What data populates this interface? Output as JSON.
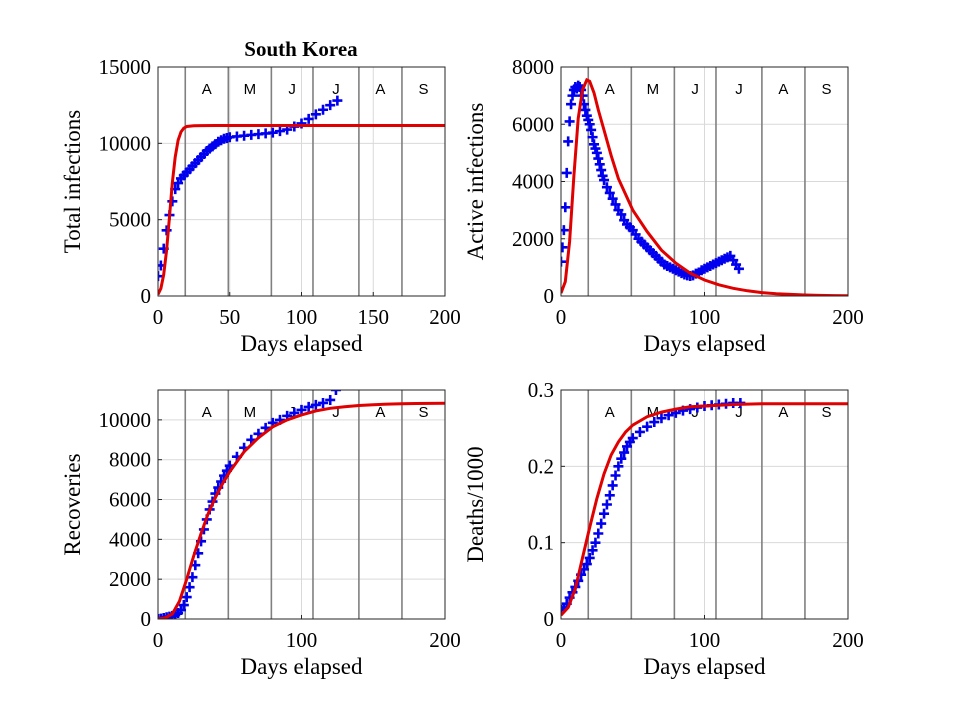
{
  "figure": {
    "title": "South Korea"
  },
  "colors": {
    "observed": "#0000ee",
    "model": "#e00000",
    "month_lines": "#808080",
    "grid": "#d9d9d9"
  },
  "months": [
    "A",
    "M",
    "J",
    "J",
    "A",
    "S"
  ],
  "month_boundaries_days": [
    19,
    49,
    79,
    108,
    140,
    170
  ],
  "chart_data": [
    {
      "type": "scatter",
      "panel": "total_infections",
      "title": "South Korea",
      "xlabel": "Days elapsed",
      "ylabel": "Total  infections",
      "xlim": [
        0,
        200
      ],
      "ylim": [
        0,
        15000
      ],
      "xticks": [
        0,
        50,
        100,
        150,
        200
      ],
      "yticks": [
        0,
        5000,
        10000,
        15000
      ],
      "grid": true,
      "observed": {
        "x": [
          0,
          2,
          4,
          6,
          8,
          10,
          12,
          14,
          16,
          18,
          20,
          22,
          24,
          26,
          28,
          30,
          32,
          34,
          36,
          38,
          40,
          42,
          44,
          46,
          48,
          50,
          55,
          60,
          65,
          70,
          75,
          80,
          85,
          90,
          95,
          100,
          105,
          110,
          115,
          120,
          125
        ],
        "y": [
          1300,
          2000,
          3100,
          4300,
          5300,
          6200,
          7000,
          7400,
          7700,
          7900,
          8100,
          8300,
          8500,
          8700,
          8900,
          9100,
          9300,
          9500,
          9650,
          9800,
          9950,
          10100,
          10200,
          10300,
          10350,
          10400,
          10450,
          10500,
          10550,
          10600,
          10650,
          10700,
          10800,
          10900,
          11100,
          11300,
          11600,
          11900,
          12200,
          12500,
          12800
        ]
      },
      "model": {
        "x": [
          0,
          2,
          4,
          6,
          8,
          10,
          12,
          14,
          16,
          18,
          20,
          25,
          30,
          40,
          60,
          100,
          150,
          200
        ],
        "y": [
          100,
          500,
          1400,
          3000,
          5200,
          7400,
          9100,
          10200,
          10750,
          11000,
          11100,
          11150,
          11160,
          11170,
          11170,
          11170,
          11170,
          11170
        ]
      }
    },
    {
      "type": "scatter",
      "panel": "active_infections",
      "xlabel": "Days elapsed",
      "ylabel": "Active  infections",
      "xlim": [
        0,
        200
      ],
      "ylim": [
        0,
        8000
      ],
      "xticks": [
        0,
        100,
        200
      ],
      "yticks": [
        0,
        2000,
        4000,
        6000,
        8000
      ],
      "grid": true,
      "observed": {
        "x": [
          0,
          1,
          2,
          3,
          4,
          5,
          6,
          7,
          8,
          9,
          10,
          11,
          12,
          13,
          14,
          15,
          16,
          17,
          18,
          19,
          20,
          21,
          22,
          23,
          24,
          25,
          26,
          27,
          28,
          29,
          30,
          32,
          34,
          36,
          38,
          40,
          42,
          44,
          46,
          48,
          50,
          52,
          54,
          56,
          58,
          60,
          62,
          64,
          66,
          68,
          70,
          72,
          74,
          76,
          78,
          80,
          82,
          84,
          86,
          88,
          90,
          92,
          94,
          96,
          98,
          100,
          102,
          104,
          106,
          108,
          110,
          112,
          114,
          116,
          118,
          120,
          122,
          124
        ],
        "y": [
          1200,
          1700,
          2300,
          3100,
          4300,
          5400,
          6100,
          6700,
          7000,
          7200,
          7300,
          7250,
          7350,
          7300,
          7200,
          7000,
          6700,
          6500,
          6300,
          6150,
          6000,
          5800,
          5550,
          5300,
          5150,
          5000,
          4800,
          4600,
          4400,
          4200,
          4050,
          3800,
          3600,
          3400,
          3200,
          3000,
          2850,
          2650,
          2500,
          2400,
          2300,
          2150,
          2000,
          1900,
          1800,
          1700,
          1600,
          1500,
          1400,
          1300,
          1200,
          1100,
          1050,
          1000,
          950,
          900,
          850,
          800,
          750,
          720,
          700,
          720,
          780,
          820,
          900,
          950,
          1000,
          1050,
          1100,
          1150,
          1200,
          1250,
          1300,
          1350,
          1400,
          1250,
          1100,
          950
        ]
      },
      "model": {
        "x": [
          0,
          3,
          6,
          9,
          12,
          15,
          18,
          20,
          23,
          26,
          30,
          35,
          40,
          50,
          60,
          70,
          80,
          90,
          100,
          110,
          120,
          130,
          140,
          150,
          160,
          170,
          180,
          190,
          200
        ],
        "y": [
          100,
          500,
          1900,
          4200,
          6200,
          7200,
          7550,
          7500,
          7100,
          6500,
          5800,
          4900,
          4100,
          3000,
          2250,
          1600,
          1150,
          800,
          560,
          390,
          270,
          180,
          120,
          80,
          55,
          35,
          22,
          14,
          9
        ]
      }
    },
    {
      "type": "scatter",
      "panel": "recoveries",
      "xlabel": "Days elapsed",
      "ylabel": "Recoveries",
      "xlim": [
        0,
        200
      ],
      "ylim": [
        0,
        11500
      ],
      "xticks": [
        0,
        100,
        200
      ],
      "yticks": [
        0,
        2000,
        4000,
        6000,
        8000,
        10000
      ],
      "grid": true,
      "observed": {
        "x": [
          0,
          2,
          4,
          6,
          8,
          10,
          12,
          14,
          16,
          18,
          20,
          22,
          24,
          26,
          28,
          30,
          32,
          34,
          36,
          38,
          40,
          42,
          44,
          46,
          48,
          50,
          55,
          60,
          65,
          70,
          75,
          80,
          85,
          90,
          95,
          100,
          105,
          110,
          115,
          120,
          124
        ],
        "y": [
          0,
          20,
          50,
          90,
          120,
          160,
          200,
          300,
          450,
          700,
          1100,
          1600,
          2100,
          2700,
          3300,
          3900,
          4500,
          5000,
          5500,
          5900,
          6300,
          6600,
          6900,
          7200,
          7450,
          7700,
          8150,
          8600,
          9000,
          9300,
          9600,
          9850,
          10000,
          10200,
          10350,
          10500,
          10650,
          10750,
          10850,
          11000,
          11500
        ]
      },
      "model": {
        "x": [
          0,
          5,
          10,
          15,
          20,
          25,
          30,
          35,
          40,
          45,
          50,
          60,
          70,
          80,
          90,
          100,
          110,
          120,
          130,
          140,
          150,
          160,
          170,
          180,
          190,
          200
        ],
        "y": [
          0,
          60,
          250,
          900,
          2000,
          3200,
          4300,
          5300,
          6100,
          6800,
          7400,
          8400,
          9100,
          9650,
          10000,
          10250,
          10450,
          10580,
          10660,
          10720,
          10760,
          10790,
          10810,
          10820,
          10825,
          10830
        ]
      }
    },
    {
      "type": "scatter",
      "panel": "deaths_per_1000",
      "xlabel": "Days elapsed",
      "ylabel": "Deaths/1000",
      "xlim": [
        0,
        200
      ],
      "ylim": [
        0,
        0.3
      ],
      "xticks": [
        0,
        100,
        200
      ],
      "yticks": [
        0,
        0.1,
        0.2,
        0.3
      ],
      "grid": true,
      "observed": {
        "x": [
          0,
          2,
          4,
          6,
          8,
          10,
          12,
          14,
          16,
          18,
          20,
          22,
          24,
          26,
          28,
          30,
          32,
          34,
          36,
          38,
          40,
          42,
          44,
          46,
          48,
          50,
          55,
          60,
          65,
          70,
          75,
          80,
          85,
          90,
          95,
          100,
          105,
          110,
          115,
          120,
          125
        ],
        "y": [
          0.012,
          0.015,
          0.02,
          0.028,
          0.035,
          0.042,
          0.05,
          0.058,
          0.065,
          0.072,
          0.08,
          0.09,
          0.1,
          0.112,
          0.125,
          0.138,
          0.15,
          0.162,
          0.175,
          0.188,
          0.2,
          0.21,
          0.218,
          0.226,
          0.232,
          0.237,
          0.245,
          0.252,
          0.258,
          0.263,
          0.267,
          0.27,
          0.273,
          0.275,
          0.277,
          0.279,
          0.28,
          0.281,
          0.282,
          0.283,
          0.283
        ]
      },
      "model": {
        "x": [
          0,
          5,
          10,
          15,
          20,
          25,
          30,
          35,
          40,
          45,
          50,
          60,
          70,
          80,
          90,
          100,
          120,
          140,
          160,
          180,
          200
        ],
        "y": [
          0.005,
          0.015,
          0.04,
          0.08,
          0.12,
          0.158,
          0.19,
          0.215,
          0.232,
          0.245,
          0.254,
          0.265,
          0.271,
          0.275,
          0.278,
          0.279,
          0.281,
          0.282,
          0.282,
          0.282,
          0.282
        ]
      }
    }
  ]
}
